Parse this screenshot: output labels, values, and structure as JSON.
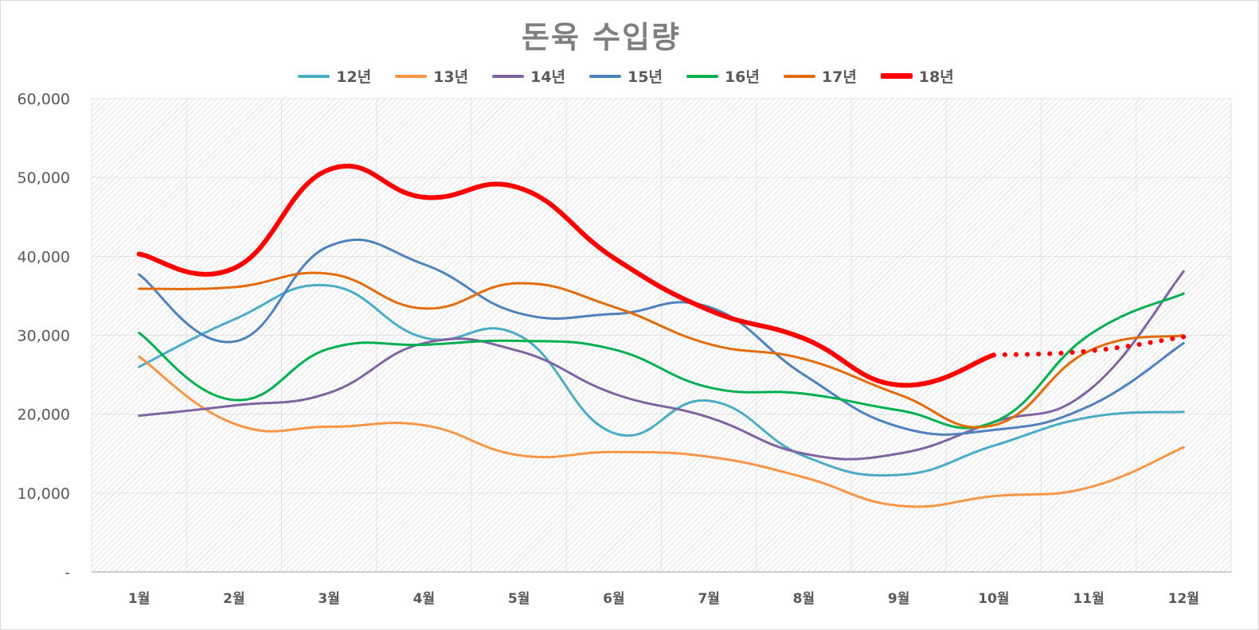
{
  "chart_data": {
    "type": "line",
    "title": "돈육 수입량",
    "xlabel": "",
    "ylabel": "",
    "categories": [
      "1월",
      "2월",
      "3월",
      "4월",
      "5월",
      "6월",
      "7월",
      "8월",
      "9월",
      "10월",
      "11월",
      "12월"
    ],
    "ylim": [
      0,
      60000
    ],
    "yticks": [
      0,
      10000,
      20000,
      30000,
      40000,
      50000,
      60000
    ],
    "ytick_labels": [
      "-",
      "10,000",
      "20,000",
      "30,000",
      "40,000",
      "50,000",
      "60,000"
    ],
    "grid": true,
    "legend_position": "top",
    "smooth": true,
    "series": [
      {
        "name": "12년",
        "color": "#4bacc6",
        "width": 3,
        "values": [
          26000,
          32000,
          36300,
          29700,
          30000,
          17600,
          21700,
          14700,
          12300,
          16000,
          19600,
          20300
        ]
      },
      {
        "name": "13년",
        "color": "#f79646",
        "width": 3,
        "values": [
          27300,
          18800,
          18400,
          18600,
          14800,
          15200,
          14600,
          12000,
          8400,
          9600,
          10700,
          15800
        ]
      },
      {
        "name": "14년",
        "color": "#8064a2",
        "width": 3,
        "values": [
          19800,
          21100,
          22700,
          29000,
          28000,
          22600,
          19600,
          15000,
          15000,
          19000,
          23000,
          38100
        ]
      },
      {
        "name": "15년",
        "color": "#4f81bd",
        "width": 3,
        "values": [
          37700,
          29200,
          41300,
          39000,
          32800,
          32700,
          33600,
          25000,
          18400,
          18000,
          21000,
          29000
        ]
      },
      {
        "name": "16년",
        "color": "#00b050",
        "width": 3,
        "values": [
          30300,
          21800,
          28300,
          28800,
          29300,
          28200,
          23400,
          22600,
          20500,
          19000,
          30000,
          35300
        ]
      },
      {
        "name": "17년",
        "color": "#e36c09",
        "width": 3,
        "values": [
          35900,
          36100,
          37800,
          33400,
          36600,
          33600,
          28900,
          27000,
          22500,
          18600,
          28000,
          30000
        ]
      },
      {
        "name": "18년",
        "color": "#ff0000",
        "width": 6,
        "values": [
          40300,
          38500,
          51000,
          47500,
          48700,
          39800,
          33200,
          29600,
          23700,
          27500,
          null,
          null
        ],
        "projection": {
          "values": [
            27500,
            28000,
            29800
          ],
          "start_index": 9
        }
      }
    ]
  }
}
